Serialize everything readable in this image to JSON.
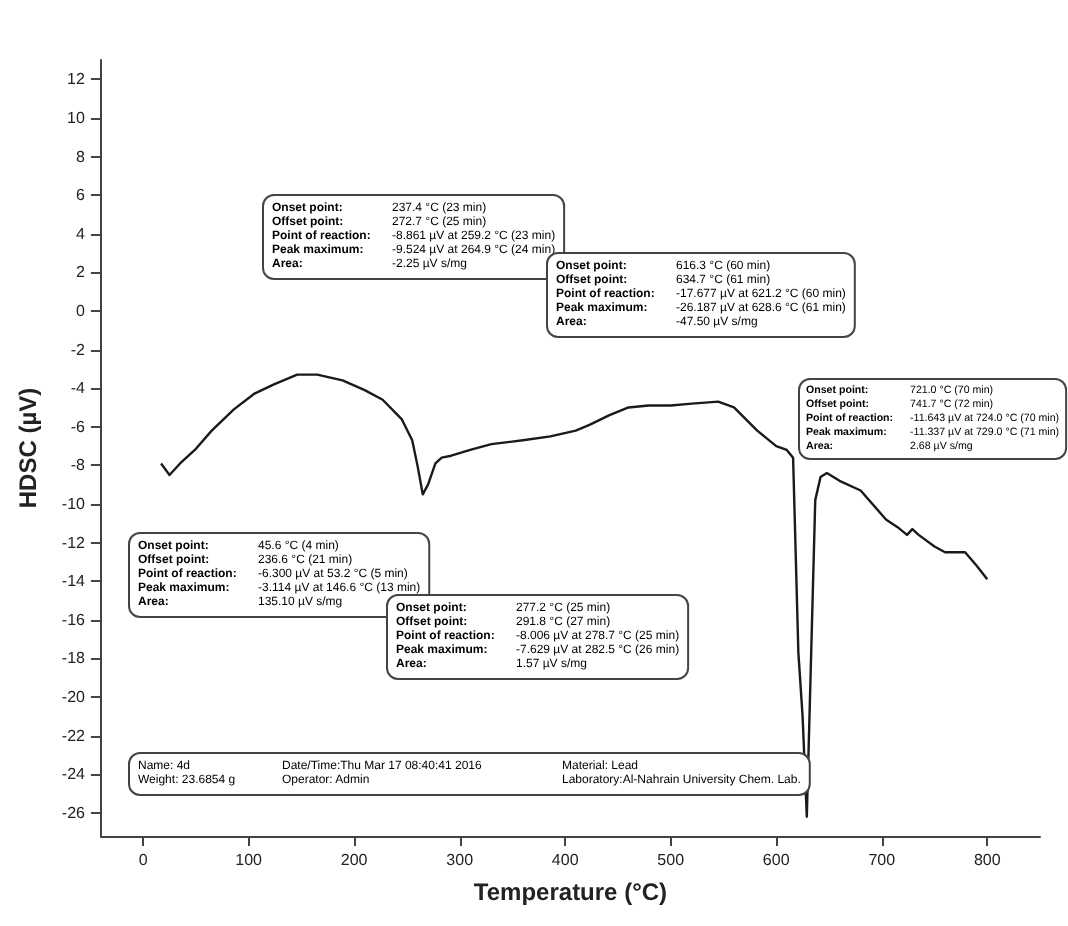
{
  "chart_data": {
    "type": "line",
    "xlabel": "Temperature (°C)",
    "ylabel": "HDSC (µV)",
    "x": [
      17,
      25,
      35,
      49,
      65,
      86,
      105,
      124,
      146,
      165,
      189,
      210,
      227,
      245,
      255,
      260,
      265,
      270,
      277,
      283,
      292,
      310,
      330,
      360,
      386,
      410,
      423,
      442,
      460,
      479,
      500,
      520,
      545,
      560,
      582,
      600,
      610,
      616,
      621,
      625,
      629,
      633,
      637,
      642,
      648,
      660,
      680,
      704,
      715,
      724,
      729,
      735,
      750,
      760,
      779,
      790,
      800
    ],
    "series": [
      {
        "color": "#1a1a1a",
        "values": [
          -7.9,
          -8.5,
          -7.9,
          -7.2,
          -6.2,
          -5.1,
          -4.3,
          -3.8,
          -3.3,
          -3.3,
          -3.6,
          -4.1,
          -4.6,
          -5.6,
          -6.7,
          -8.0,
          -9.5,
          -9.0,
          -7.9,
          -7.6,
          -7.5,
          -7.2,
          -6.9,
          -6.7,
          -6.5,
          -6.2,
          -5.9,
          -5.4,
          -5.0,
          -4.9,
          -4.9,
          -4.8,
          -4.7,
          -5.0,
          -6.2,
          -7.0,
          -7.2,
          -7.6,
          -17.7,
          -21,
          -26.2,
          -18,
          -9.8,
          -8.6,
          -8.4,
          -8.8,
          -9.3,
          -10.8,
          -11.2,
          -11.6,
          -11.3,
          -11.6,
          -12.2,
          -12.5,
          -12.5,
          -13.2,
          -13.9
        ]
      }
    ],
    "xlim": [
      -40,
      850
    ],
    "xticks": [
      0,
      100,
      200,
      300,
      400,
      500,
      600,
      700,
      800
    ],
    "ylim": [
      -27.2,
      13
    ],
    "yticks": [
      -26,
      -24,
      -22,
      -20,
      -18,
      -16,
      -14,
      -12,
      -10,
      -8,
      -6,
      -4,
      -2,
      0,
      2,
      4,
      6,
      8,
      10,
      12
    ],
    "marker": "none",
    "line_style": "solid",
    "annotations": [
      "Onset point: 237.4 °C (23 min)\nOffset point: 272.7 °C (25 min)\nPoint of reaction: -8.861 µV at 259.2 °C (23 min)\nPeak maximum: -9.524 µV at 264.9 °C (24 min)\nArea: -2.25 µV s/mg",
      "Onset point: 45.6 °C (4 min)\nOffset point: 236.6 °C (21 min)\nPoint of reaction: -6.300 µV at 53.2 °C (5 min)\nPeak maximum: -3.114 µV at 146.6 °C (13 min)\nArea: 135.10 µV s/mg",
      "Onset point: 277.2 °C (25 min)\nOffset point: 291.8 °C (27 min)\nPoint of reaction: -8.006 µV at 278.7 °C (25 min)\nPeak maximum: -7.629 µV at 282.5 °C (26 min)\nArea: 1.57 µV s/mg",
      "Onset point: 616.3 °C (60 min)\nOffset point: 634.7 °C (61 min)\nPoint of reaction: -17.677 µV at 621.2 °C (60 min)\nPeak maximum: -26.187 µV at 628.6 °C (61 min)\nArea: -47.50 µV s/mg",
      "Onset point: 721.0 °C (70 min)\nOffset point: 741.7 °C (72 min)\nPoint of reaction: -11.643 µV at 724.0 °C (70 min)\nPeak maximum: -11.337 µV at 729.0 °C (71 min)\nArea: 2.68 µV s/mg",
      "Name: 4d\tDate/Time:Thu Mar 17 08:40:41 2016\tMaterial: Lead\nWeight: 23.6854 g\tOperator: Admin\tLaboratory:Al-Nahrain University Chem. Lab."
    ]
  }
}
